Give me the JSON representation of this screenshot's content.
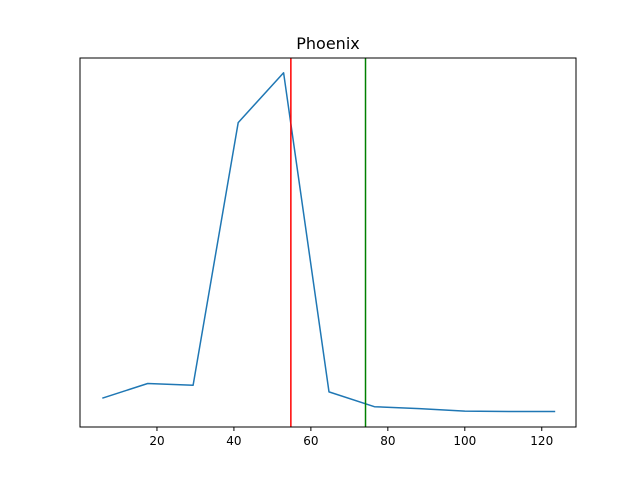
{
  "chart_data": {
    "type": "line",
    "title": "Phoenix",
    "xlabel": "",
    "ylabel": "",
    "xlim": [
      0,
      128.9
    ],
    "ylim": [
      0,
      1
    ],
    "grid": false,
    "x_ticks": [
      20,
      40,
      60,
      80,
      100,
      120
    ],
    "series": [
      {
        "color": "#1f77b4",
        "x": [
          5.8,
          17.6,
          29.4,
          41.1,
          52.9,
          64.7,
          76.5,
          88.2,
          100.0,
          111.8,
          123.5
        ],
        "y": [
          0.078,
          0.118,
          0.113,
          0.825,
          0.96,
          0.095,
          0.055,
          0.05,
          0.043,
          0.042,
          0.042
        ]
      }
    ],
    "vlines": [
      {
        "x": 54.8,
        "color": "#ff0000"
      },
      {
        "x": 74.2,
        "color": "#008000"
      }
    ]
  }
}
